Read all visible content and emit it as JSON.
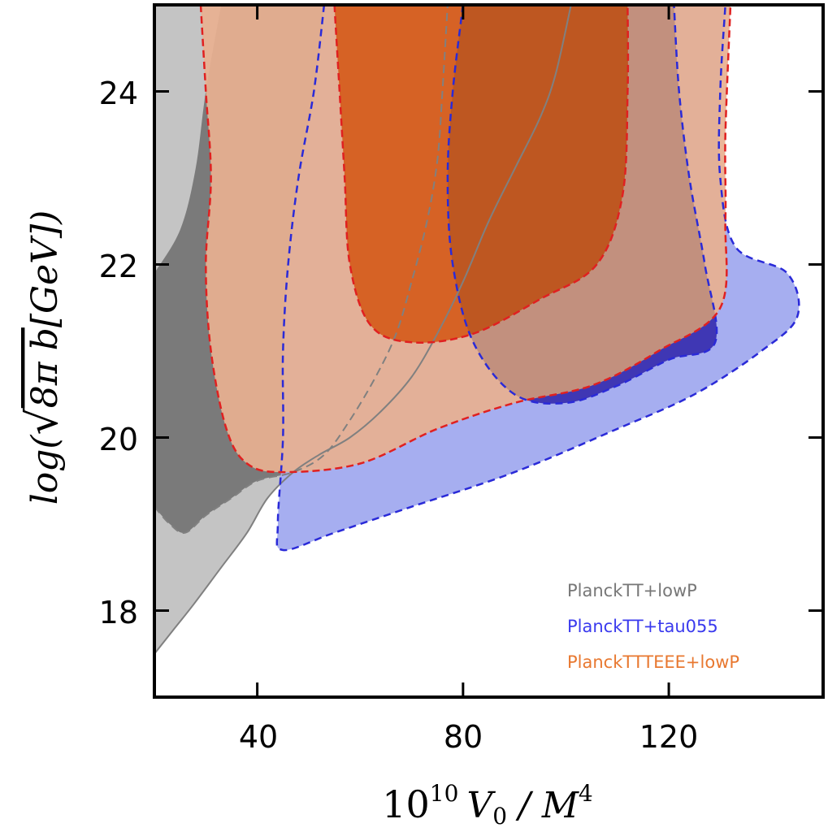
{
  "chart_data": {
    "type": "contour",
    "title": "",
    "xlabel": "10^10 V_0 / M^4",
    "xlabel_parts": {
      "base": "10",
      "exp": "10",
      "var": "V",
      "sub": "0",
      "sep": " / ",
      "var2": "M",
      "exp2": "4"
    },
    "ylabel": "log(√(8π b) [GeV])",
    "ylabel_parts": {
      "pre": "log(",
      "radical": "√",
      "radicand": "8π b",
      "post": "[GeV])"
    },
    "xlim": [
      20,
      150
    ],
    "ylim": [
      17,
      25
    ],
    "xticks": [
      40,
      80,
      120
    ],
    "yticks": [
      18,
      20,
      22,
      24
    ],
    "legend_position": "bottom-right",
    "series": [
      {
        "name": "PlanckTT+lowP",
        "color": "#777777",
        "fill68": "#7a7a7a",
        "fill95": "#c4c4c4",
        "line": "#808080",
        "contour95": [
          [
            20,
            17.5
          ],
          [
            24,
            17.8
          ],
          [
            28,
            18.1
          ],
          [
            33,
            18.5
          ],
          [
            38,
            18.9
          ],
          [
            42,
            19.3
          ],
          [
            47,
            19.6
          ],
          [
            52,
            19.8
          ],
          [
            58,
            20.0
          ],
          [
            64,
            20.3
          ],
          [
            70,
            20.7
          ],
          [
            75,
            21.2
          ],
          [
            80,
            21.8
          ],
          [
            85,
            22.5
          ],
          [
            90,
            23.1
          ],
          [
            95,
            23.7
          ],
          [
            98,
            24.2
          ],
          [
            101,
            25
          ]
        ],
        "contour68": [
          [
            20,
            19.2
          ],
          [
            23,
            19.0
          ],
          [
            26,
            18.9
          ],
          [
            30,
            19.1
          ],
          [
            35,
            19.3
          ],
          [
            40,
            19.5
          ],
          [
            47,
            19.6
          ],
          [
            53,
            19.8
          ],
          [
            58,
            20.2
          ],
          [
            63,
            20.7
          ],
          [
            67,
            21.2
          ],
          [
            70,
            21.8
          ],
          [
            73,
            22.5
          ],
          [
            75,
            23.2
          ],
          [
            76,
            24.0
          ],
          [
            77,
            25
          ]
        ],
        "contour68_left": [
          [
            20,
            21.9
          ],
          [
            25,
            22.4
          ],
          [
            28,
            23.1
          ],
          [
            30,
            24.0
          ],
          [
            33,
            25
          ]
        ]
      },
      {
        "name": "PlanckTT+tau055",
        "color": "#3a3aee",
        "fill68": "#3a3ad8",
        "fill95": "#a6aef0",
        "line": "#2a2ad8",
        "contour95": [
          [
            53,
            25
          ],
          [
            51,
            24
          ],
          [
            48,
            23
          ],
          [
            46,
            22
          ],
          [
            45,
            21
          ],
          [
            45,
            20
          ],
          [
            44,
            19
          ],
          [
            45,
            18.7
          ],
          [
            55,
            18.9
          ],
          [
            70,
            19.2
          ],
          [
            90,
            19.6
          ],
          [
            110,
            20.1
          ],
          [
            125,
            20.5
          ],
          [
            138,
            21.0
          ],
          [
            145,
            21.4
          ],
          [
            143,
            21.9
          ],
          [
            133,
            22.2
          ],
          [
            130,
            23.0
          ],
          [
            130,
            24.0
          ],
          [
            131,
            25
          ]
        ],
        "contour68": [
          [
            80,
            25
          ],
          [
            78,
            24
          ],
          [
            77,
            23
          ],
          [
            78,
            22
          ],
          [
            82,
            21.1
          ],
          [
            90,
            20.5
          ],
          [
            100,
            20.4
          ],
          [
            110,
            20.6
          ],
          [
            120,
            20.9
          ],
          [
            129,
            21.1
          ],
          [
            127,
            22
          ],
          [
            124,
            23
          ],
          [
            122,
            24
          ],
          [
            121,
            25
          ]
        ]
      },
      {
        "name": "PlanckTTTEEE+lowP",
        "color": "#e87830",
        "fill68": "#d45a18",
        "fill95": "#e8b090",
        "line": "#e02020",
        "contour95": [
          [
            29,
            25
          ],
          [
            30,
            24
          ],
          [
            31,
            23
          ],
          [
            30,
            22
          ],
          [
            31,
            21
          ],
          [
            34,
            20.1
          ],
          [
            38,
            19.7
          ],
          [
            45,
            19.6
          ],
          [
            60,
            19.7
          ],
          [
            75,
            20.1
          ],
          [
            90,
            20.4
          ],
          [
            105,
            20.6
          ],
          [
            118,
            21.0
          ],
          [
            130,
            21.5
          ],
          [
            131,
            22.5
          ],
          [
            131,
            23.5
          ],
          [
            132,
            25
          ]
        ],
        "contour68": [
          [
            55,
            25
          ],
          [
            56,
            24
          ],
          [
            57,
            23
          ],
          [
            58,
            22
          ],
          [
            62,
            21.3
          ],
          [
            70,
            21.1
          ],
          [
            82,
            21.2
          ],
          [
            95,
            21.6
          ],
          [
            106,
            22.0
          ],
          [
            111,
            22.8
          ],
          [
            112,
            24.0
          ],
          [
            112,
            25
          ]
        ]
      }
    ]
  }
}
